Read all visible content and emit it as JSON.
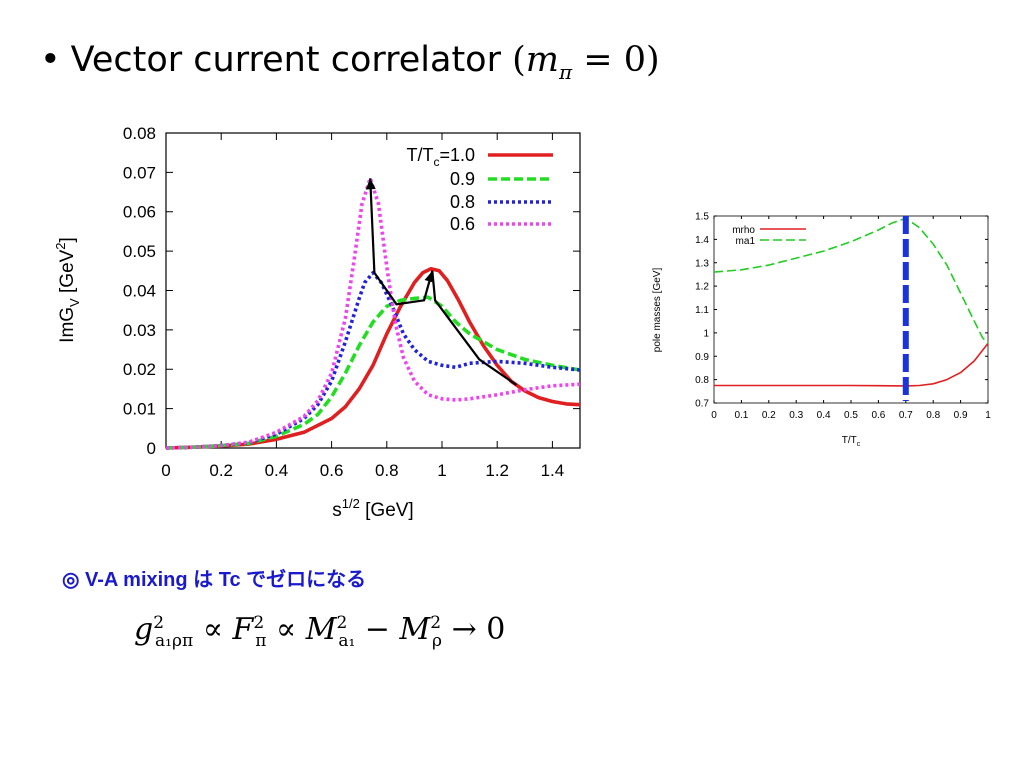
{
  "slide": {
    "bullet": "•",
    "title": "Vector current correlator",
    "title_math_var": "m",
    "title_math_sub": "π",
    "title_math_rest": "= 0)",
    "title_math_open": "(",
    "note": "◎ V-A mixing は Tc でゼロになる",
    "note_color": "#1a1acc",
    "formula": {
      "g": "g",
      "g_sup": "2",
      "g_sub": "a₁ρπ",
      "prop1": " ∝ ",
      "F": "F",
      "F_sup": "2",
      "F_sub": "π",
      "prop2": " ∝ ",
      "M1": "M",
      "M1_sup": "2",
      "M1_sub": "a₁",
      "minus": " − ",
      "M2": "M",
      "M2_sup": "2",
      "M2_sub": "ρ",
      "arrow": " → 0"
    }
  },
  "chart_data": [
    {
      "type": "line",
      "xlabel": "s^1/2 [GeV]",
      "ylabel": "ImG_V [GeV^2]",
      "xlim": [
        0,
        1.5
      ],
      "ylim": [
        0,
        0.08
      ],
      "xticks": [
        0,
        0.2,
        0.4,
        0.6,
        0.8,
        1,
        1.2,
        1.4
      ],
      "yticks": [
        0,
        0.01,
        0.02,
        0.03,
        0.04,
        0.05,
        0.06,
        0.07,
        0.08
      ],
      "legend_position": "top-right",
      "legend_title": "T/T_c=",
      "series": [
        {
          "name": "1.0",
          "color": "#e02020",
          "dash": "solid",
          "x": [
            0,
            0.1,
            0.2,
            0.3,
            0.4,
            0.5,
            0.6,
            0.65,
            0.7,
            0.75,
            0.8,
            0.85,
            0.9,
            0.93,
            0.96,
            0.99,
            1.02,
            1.06,
            1.1,
            1.15,
            1.2,
            1.25,
            1.3,
            1.35,
            1.4,
            1.45,
            1.5
          ],
          "y": [
            0,
            0.0002,
            0.0005,
            0.001,
            0.0022,
            0.004,
            0.0075,
            0.0105,
            0.015,
            0.021,
            0.029,
            0.036,
            0.042,
            0.0445,
            0.0455,
            0.045,
            0.0425,
            0.0375,
            0.032,
            0.026,
            0.021,
            0.017,
            0.0145,
            0.0128,
            0.0118,
            0.0112,
            0.011
          ]
        },
        {
          "name": "0.9",
          "color": "#22dd22",
          "dash": "dashed",
          "x": [
            0,
            0.1,
            0.2,
            0.3,
            0.4,
            0.5,
            0.55,
            0.6,
            0.65,
            0.7,
            0.75,
            0.8,
            0.85,
            0.9,
            0.95,
            1.0,
            1.05,
            1.1,
            1.2,
            1.3,
            1.4,
            1.5
          ],
          "y": [
            0,
            0.0002,
            0.0006,
            0.0012,
            0.003,
            0.006,
            0.0085,
            0.013,
            0.019,
            0.026,
            0.032,
            0.036,
            0.0375,
            0.038,
            0.0383,
            0.036,
            0.032,
            0.029,
            0.025,
            0.0225,
            0.021,
            0.0198
          ]
        },
        {
          "name": "0.8",
          "color": "#2222dd",
          "dash": "dotted",
          "x": [
            0,
            0.1,
            0.2,
            0.3,
            0.4,
            0.5,
            0.55,
            0.6,
            0.65,
            0.7,
            0.72,
            0.75,
            0.78,
            0.82,
            0.86,
            0.9,
            0.95,
            1.0,
            1.05,
            1.1,
            1.2,
            1.3,
            1.4,
            1.5
          ],
          "y": [
            0,
            0.0002,
            0.0006,
            0.0014,
            0.0035,
            0.0075,
            0.011,
            0.017,
            0.027,
            0.038,
            0.042,
            0.0445,
            0.042,
            0.036,
            0.029,
            0.025,
            0.022,
            0.021,
            0.0205,
            0.0215,
            0.022,
            0.0215,
            0.0205,
            0.0198
          ]
        },
        {
          "name": "0.6",
          "color": "#ee44ee",
          "dash": "dotted",
          "x": [
            0,
            0.1,
            0.2,
            0.3,
            0.4,
            0.5,
            0.55,
            0.6,
            0.65,
            0.68,
            0.71,
            0.74,
            0.77,
            0.8,
            0.83,
            0.86,
            0.9,
            0.95,
            1.0,
            1.05,
            1.1,
            1.2,
            1.3,
            1.4,
            1.5
          ],
          "y": [
            0,
            0.0002,
            0.0006,
            0.0015,
            0.004,
            0.008,
            0.012,
            0.019,
            0.033,
            0.047,
            0.062,
            0.0685,
            0.062,
            0.046,
            0.032,
            0.023,
            0.017,
            0.0135,
            0.0125,
            0.0122,
            0.0125,
            0.0135,
            0.0148,
            0.0158,
            0.0162
          ]
        }
      ],
      "annotation_path": {
        "color": "#000000",
        "x": [
          0.74,
          0.755,
          0.835,
          0.935,
          0.965,
          0.975,
          1.135,
          1.27
        ],
        "y": [
          0.0685,
          0.0445,
          0.0365,
          0.0375,
          0.045,
          0.0375,
          0.0225,
          0.016
        ]
      }
    },
    {
      "type": "line",
      "xlabel": "T/T_c",
      "ylabel": "pole masses [GeV]",
      "xlim": [
        0,
        1
      ],
      "ylim": [
        0.7,
        1.5
      ],
      "xticks": [
        0,
        0.1,
        0.2,
        0.3,
        0.4,
        0.5,
        0.6,
        0.7,
        0.8,
        0.9,
        1
      ],
      "yticks": [
        0.7,
        0.8,
        0.9,
        1,
        1.1,
        1.2,
        1.3,
        1.4,
        1.5
      ],
      "legend_position": "top-left",
      "series": [
        {
          "name": "mrho",
          "color": "#e02020",
          "dash": "solid",
          "x": [
            0,
            0.1,
            0.2,
            0.3,
            0.4,
            0.5,
            0.6,
            0.7,
            0.75,
            0.8,
            0.85,
            0.9,
            0.95,
            0.98,
            1.0
          ],
          "y": [
            0.775,
            0.775,
            0.775,
            0.775,
            0.775,
            0.775,
            0.774,
            0.773,
            0.775,
            0.782,
            0.8,
            0.83,
            0.88,
            0.925,
            0.955
          ]
        },
        {
          "name": "ma1",
          "color": "#22cc22",
          "dash": "dashed",
          "x": [
            0,
            0.1,
            0.2,
            0.3,
            0.4,
            0.5,
            0.6,
            0.65,
            0.7,
            0.75,
            0.8,
            0.85,
            0.9,
            0.95,
            0.98,
            1.0
          ],
          "y": [
            1.26,
            1.27,
            1.29,
            1.32,
            1.35,
            1.39,
            1.44,
            1.47,
            1.49,
            1.45,
            1.38,
            1.29,
            1.17,
            1.05,
            0.98,
            0.955
          ]
        }
      ],
      "marker_line": {
        "x": 0.7,
        "color": "#1a33dd",
        "dash": "dashed"
      }
    }
  ]
}
